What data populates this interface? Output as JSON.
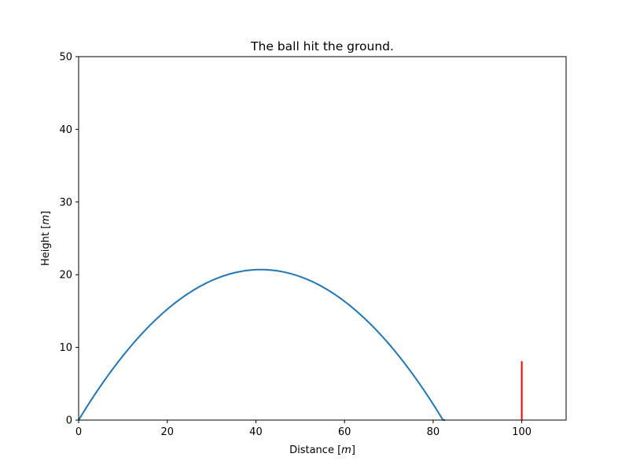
{
  "chart_data": {
    "type": "line",
    "title": "The ball hit the ground.",
    "xlabel": "Distance [",
    "xlabel_unit": "m",
    "xlabel_close": "]",
    "ylabel": "Height [",
    "ylabel_unit": "m",
    "ylabel_close": "]",
    "xlim": [
      0,
      110
    ],
    "ylim": [
      0,
      50
    ],
    "xticks": [
      0,
      20,
      40,
      60,
      80,
      100
    ],
    "yticks": [
      0,
      10,
      20,
      30,
      40,
      50
    ],
    "grid": false,
    "series": [
      {
        "kind": "trajectory",
        "color": "#1f77b4",
        "x": [
          0,
          5,
          10,
          15,
          20,
          25,
          30,
          35,
          41.3,
          45,
          50,
          55,
          60,
          65,
          70,
          75,
          80,
          82.7
        ],
        "y": [
          0,
          4.72,
          8.84,
          12.37,
          15.3,
          17.63,
          19.37,
          20.51,
          20.7,
          20.5,
          19.65,
          18.21,
          16.18,
          13.55,
          10.33,
          6.51,
          2.1,
          0
        ]
      },
      {
        "kind": "target",
        "color": "#ff0000",
        "x": [
          100,
          100
        ],
        "y": [
          0,
          8.1
        ]
      }
    ]
  }
}
